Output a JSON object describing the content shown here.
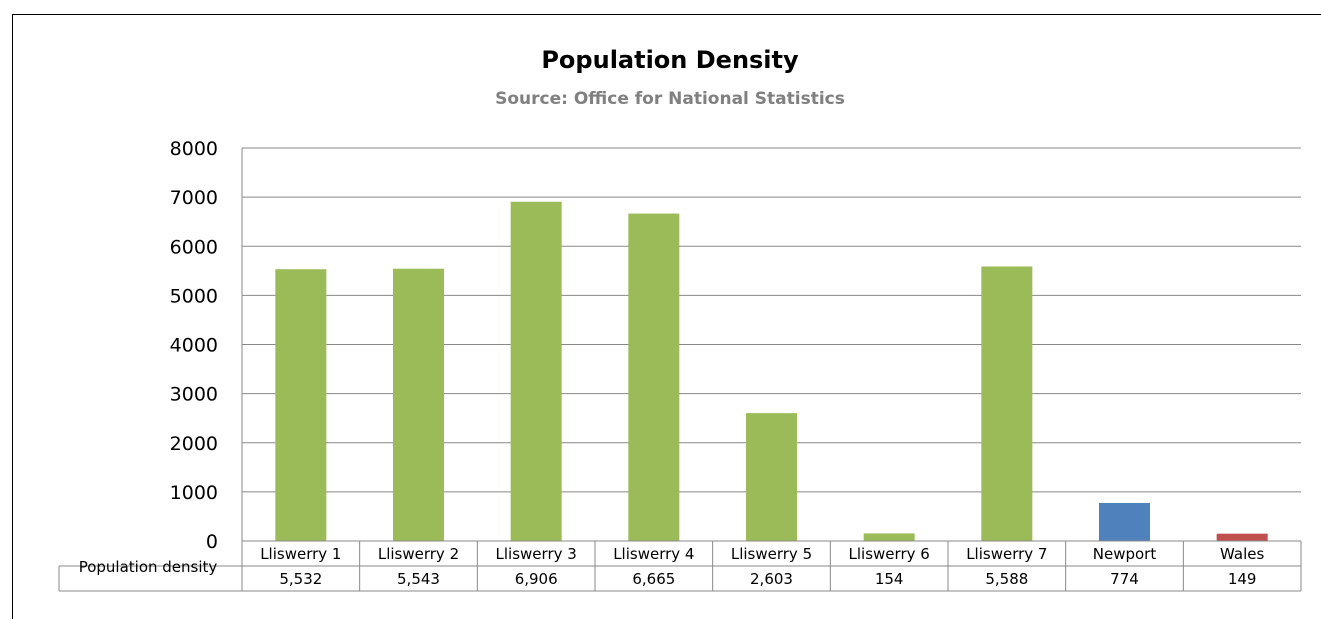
{
  "chart_data": {
    "type": "bar",
    "title": "Population Density",
    "subtitle": "Source: Office for National Statistics",
    "categories": [
      "Lliswerry 1",
      "Lliswerry 2",
      "Lliswerry 3",
      "Lliswerry 4",
      "Lliswerry 5",
      "Lliswerry 6",
      "Lliswerry 7",
      "Newport",
      "Wales"
    ],
    "series": [
      {
        "name": "Population density",
        "values": [
          5532,
          5543,
          6906,
          6665,
          2603,
          154,
          5588,
          774,
          149
        ],
        "labels": [
          "5,532",
          "5,543",
          "6,906",
          "6,665",
          "2,603",
          "154",
          "5,588",
          "774",
          "149"
        ]
      }
    ],
    "bar_colors": [
      "#9bbb59",
      "#9bbb59",
      "#9bbb59",
      "#9bbb59",
      "#9bbb59",
      "#9bbb59",
      "#9bbb59",
      "#4f81bd",
      "#c0504d"
    ],
    "ylim": [
      0,
      8000
    ],
    "yticks": [
      "0",
      "1000",
      "2000",
      "3000",
      "4000",
      "5000",
      "6000",
      "7000",
      "8000"
    ],
    "grid": true,
    "legend": "data-table"
  }
}
